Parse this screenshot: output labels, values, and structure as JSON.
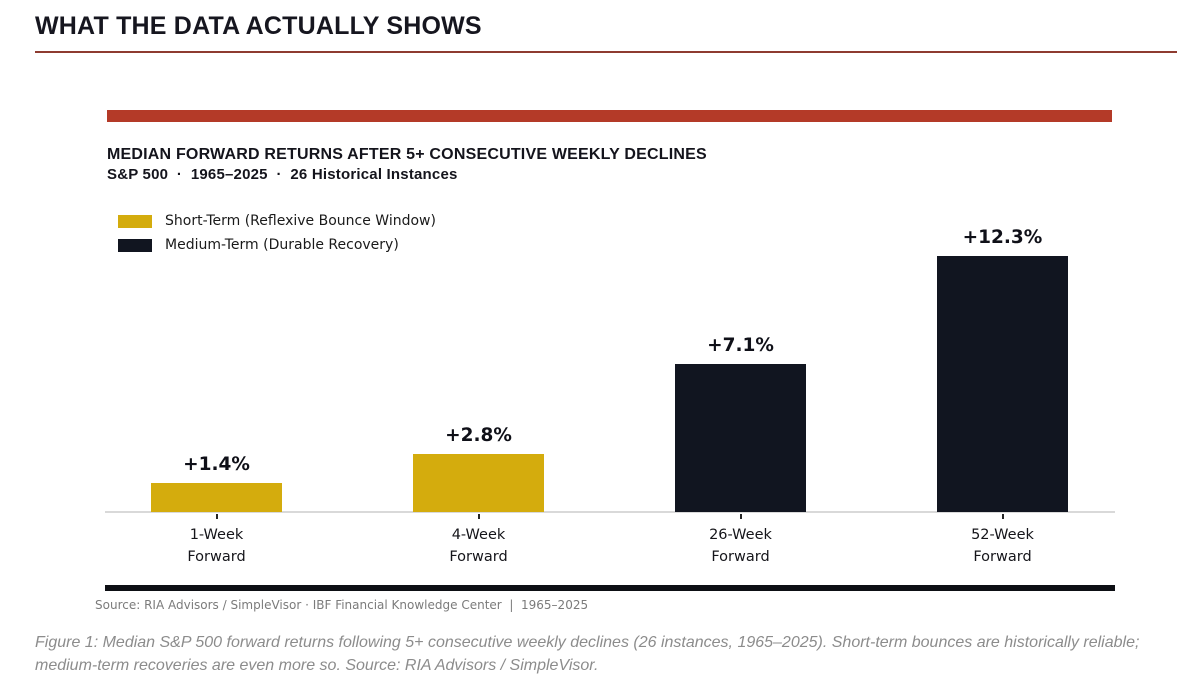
{
  "header": {
    "title": "WHAT THE DATA ACTUALLY SHOWS"
  },
  "chart_data": {
    "type": "bar",
    "title": "MEDIAN FORWARD RETURNS AFTER 5+ CONSECUTIVE WEEKLY DECLINES",
    "subtitle": "S&P 500  ·  1965–2025  ·  26 Historical Instances",
    "categories": [
      "1-Week Forward",
      "4-Week Forward",
      "26-Week Forward",
      "52-Week Forward"
    ],
    "values": [
      1.4,
      2.8,
      7.1,
      12.3
    ],
    "ylim": [
      0,
      14
    ],
    "grid": false,
    "legend_position": "upper-left",
    "accent_color": "#b43a28",
    "axis_color": "#d9d9d9",
    "legend": [
      {
        "label": "Short-Term (Reflexive Bounce Window)",
        "color": "#d4ac0d"
      },
      {
        "label": "Medium-Term (Durable Recovery)",
        "color": "#111520"
      }
    ],
    "bars": [
      {
        "category_line1": "1-Week",
        "category_line2": "Forward",
        "value": 1.4,
        "label": "+1.4%",
        "series": "Short-Term (Reflexive Bounce Window)",
        "color": "#d4ac0d"
      },
      {
        "category_line1": "4-Week",
        "category_line2": "Forward",
        "value": 2.8,
        "label": "+2.8%",
        "series": "Short-Term (Reflexive Bounce Window)",
        "color": "#d4ac0d"
      },
      {
        "category_line1": "26-Week",
        "category_line2": "Forward",
        "value": 7.1,
        "label": "+7.1%",
        "series": "Medium-Term (Durable Recovery)",
        "color": "#111520"
      },
      {
        "category_line1": "52-Week",
        "category_line2": "Forward",
        "value": 12.3,
        "label": "+12.3%",
        "series": "Medium-Term (Durable Recovery)",
        "color": "#111520"
      }
    ],
    "source": "Source: RIA Advisors / SimpleVisor · IBF Financial Knowledge Center  |  1965–2025"
  },
  "caption": "Figure 1: Median S&P 500 forward returns following 5+ consecutive weekly declines (26 instances, 1965–2025). Short-term bounces are historically reliable; medium-term recoveries are even more so. Source: RIA Advisors / SimpleVisor."
}
